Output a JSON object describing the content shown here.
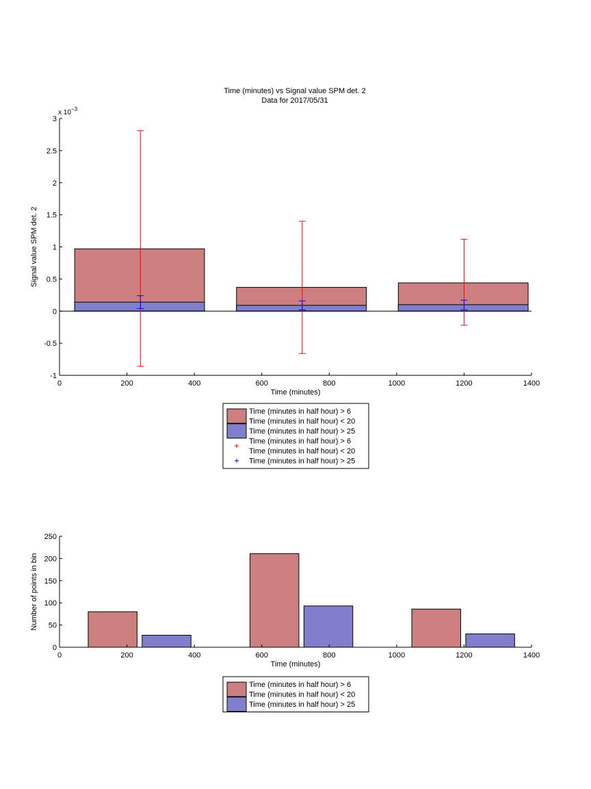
{
  "chart_data": [
    {
      "type": "bar",
      "title": "Time (minutes) vs Signal value SPM det. 2",
      "subtitle": "Data for 2017/05/31",
      "xlabel": "Time (minutes)",
      "ylabel": "Signal value SPM det. 2",
      "exponent_label": "x 10",
      "exponent_power": "−3",
      "xlim": [
        0,
        1400
      ],
      "ylim": [
        -1,
        3
      ],
      "y_scale": 0.001,
      "xticks": [
        0,
        200,
        400,
        600,
        800,
        1000,
        1200,
        1400
      ],
      "yticks": [
        -1,
        -0.5,
        0,
        0.5,
        1,
        1.5,
        2,
        2.5,
        3
      ],
      "bars": [
        {
          "series": "red",
          "x_start": 45,
          "x_end": 430,
          "value": 0.00097
        },
        {
          "series": "red",
          "x_start": 525,
          "x_end": 910,
          "value": 0.00037
        },
        {
          "series": "red",
          "x_start": 1005,
          "x_end": 1390,
          "value": 0.00044
        },
        {
          "series": "blue",
          "x_start": 45,
          "x_end": 430,
          "value": 0.00014
        },
        {
          "series": "blue",
          "x_start": 525,
          "x_end": 910,
          "value": 9e-05
        },
        {
          "series": "blue",
          "x_start": 1005,
          "x_end": 1390,
          "value": 0.0001
        }
      ],
      "error_bars": [
        {
          "series": "red",
          "x": 240,
          "low": -0.00086,
          "high": 0.00281
        },
        {
          "series": "red",
          "x": 720,
          "low": -0.00066,
          "high": 0.0014
        },
        {
          "series": "red",
          "x": 1200,
          "low": -0.00022,
          "high": 0.00112
        },
        {
          "series": "blue",
          "x": 240,
          "low": 4e-05,
          "high": 0.00024
        },
        {
          "series": "blue",
          "x": 720,
          "low": 2e-05,
          "high": 0.00016
        },
        {
          "series": "blue",
          "x": 1200,
          "low": 2e-05,
          "high": 0.00017
        }
      ],
      "legend": [
        {
          "kind": "patch",
          "color": "#cc7f7f",
          "lines": [
            "Time (minutes in half hour) > 6",
            "Time (minutes in half hour) < 20"
          ]
        },
        {
          "kind": "patch",
          "color": "#7f7fcc",
          "lines": [
            "Time (minutes in half hour) > 25"
          ]
        },
        {
          "kind": "marker",
          "color": "#ff0000",
          "lines": [
            "Time (minutes in half hour) > 6",
            "Time (minutes in half hour) < 20"
          ]
        },
        {
          "kind": "marker",
          "color": "#0000ff",
          "lines": [
            "Time (minutes in half hour) > 25"
          ]
        }
      ],
      "legend_placement": "below"
    },
    {
      "type": "bar",
      "xlabel": "Time (minutes)",
      "ylabel": "Number of points in bin",
      "xlim": [
        0,
        1400
      ],
      "ylim": [
        0,
        250
      ],
      "xticks": [
        0,
        200,
        400,
        600,
        800,
        1000,
        1200,
        1400
      ],
      "yticks": [
        0,
        50,
        100,
        150,
        200,
        250
      ],
      "bars": [
        {
          "series": "red",
          "x_start": 85,
          "x_end": 230,
          "value": 80
        },
        {
          "series": "blue",
          "x_start": 245,
          "x_end": 390,
          "value": 27
        },
        {
          "series": "red",
          "x_start": 565,
          "x_end": 710,
          "value": 211
        },
        {
          "series": "blue",
          "x_start": 725,
          "x_end": 870,
          "value": 93
        },
        {
          "series": "red",
          "x_start": 1045,
          "x_end": 1190,
          "value": 86
        },
        {
          "series": "blue",
          "x_start": 1205,
          "x_end": 1350,
          "value": 30
        }
      ],
      "legend": [
        {
          "kind": "patch",
          "color": "#cc7f7f",
          "lines": [
            "Time (minutes in half hour) > 6",
            "Time (minutes in half hour) < 20"
          ]
        },
        {
          "kind": "patch",
          "color": "#7f7fcc",
          "lines": [
            "Time (minutes in half hour) > 25"
          ]
        }
      ],
      "legend_placement": "below"
    }
  ],
  "colors": {
    "red_fill": "#cc7f7f",
    "blue_fill": "#7f7fcc",
    "red_err": "#ff0000",
    "blue_err": "#0000ff"
  }
}
